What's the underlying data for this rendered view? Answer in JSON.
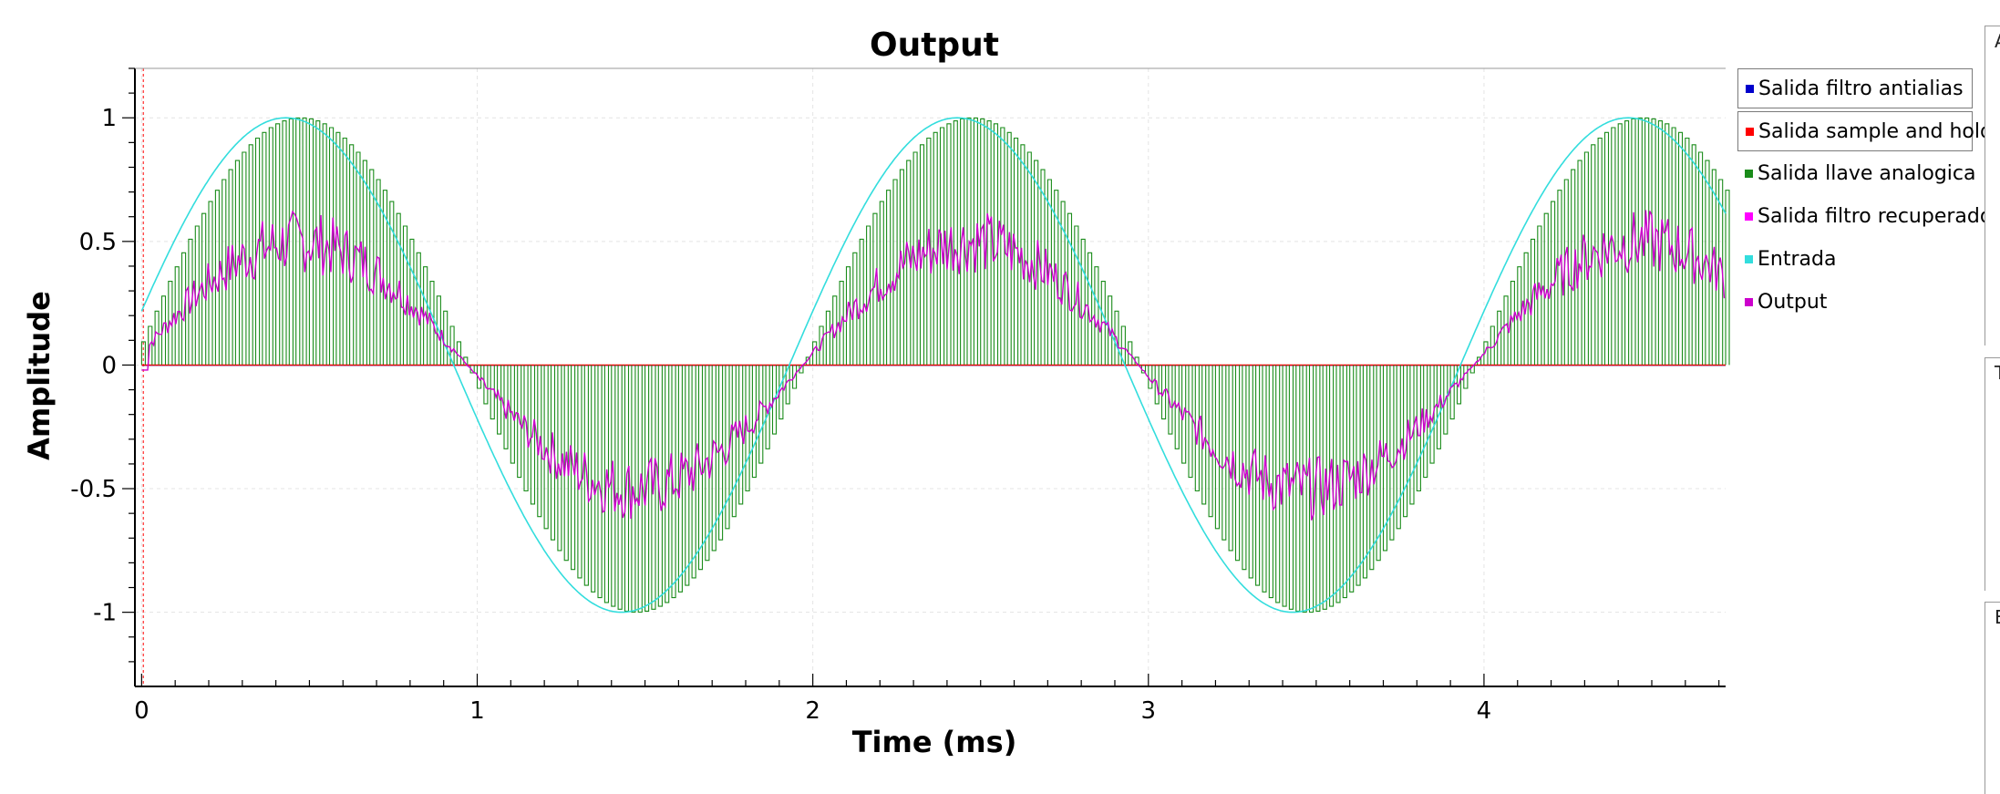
{
  "chart_data": {
    "type": "line",
    "title": "Output",
    "xlabel": "Time (ms)",
    "ylabel": "Amplitude",
    "xlim": [
      -0.02,
      4.72
    ],
    "ylim": [
      -1.3,
      1.2
    ],
    "x_ticks": [
      0,
      1,
      2,
      3,
      4
    ],
    "x_tick_labels": [
      "0",
      "1",
      "2",
      "3",
      "4"
    ],
    "y_ticks": [
      -1,
      -0.5,
      0,
      0.5,
      1
    ],
    "y_tick_labels": [
      "-1",
      "-0.5",
      "0",
      "0.5",
      "1"
    ],
    "grid": true,
    "legend_position": "right",
    "series": [
      {
        "name": "Salida filtro antialias",
        "color": "#0000cc",
        "boxed": true,
        "values": [
          0,
          0
        ]
      },
      {
        "name": "Salida sample and hold",
        "color": "#ff0000",
        "boxed": true,
        "values": [
          0,
          0
        ]
      },
      {
        "name": "Salida llave analogica",
        "color": "#1a8c1a",
        "boxed": false,
        "description_shape": "sampled half-wave pulses with sine envelope",
        "period_ms": 2.0,
        "peak": 1.0,
        "phase_peak_ms": 0.47,
        "pulses_per_half_period": 50
      },
      {
        "name": "Salida filtro recuperador",
        "color": "#ff00ff",
        "boxed": false,
        "period_ms": 2.0,
        "peak": 0.5,
        "phase_peak_ms": 0.47
      },
      {
        "name": "Entrada",
        "color": "#33dddd",
        "boxed": false,
        "period_ms": 2.0,
        "peak": 1.0,
        "phase_peak_ms": 0.43
      },
      {
        "name": "Output",
        "color": "#cc00cc",
        "boxed": false,
        "period_ms": 2.0,
        "peak": 0.5,
        "phase_peak_ms": 0.47
      }
    ]
  },
  "side_panels": [
    {
      "label": "A"
    },
    {
      "label": "T"
    },
    {
      "label": "E"
    }
  ]
}
